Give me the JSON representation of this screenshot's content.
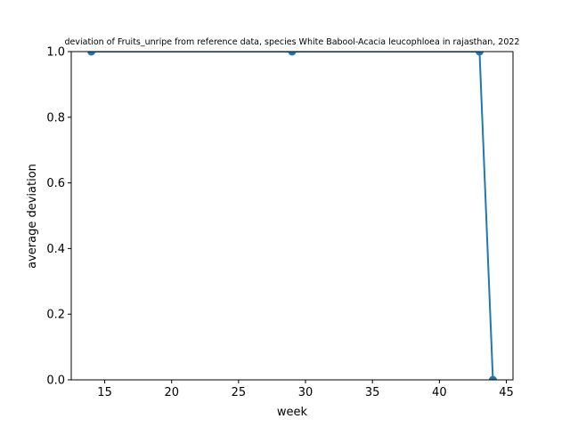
{
  "chart_data": {
    "type": "line",
    "title": "deviation of Fruits_unripe from reference data, species White Babool-Acacia leucophloea in rajasthan, 2022",
    "xlabel": "week",
    "ylabel": "average deviation",
    "xlim": [
      12.5,
      45.5
    ],
    "ylim": [
      0.0,
      1.0
    ],
    "x_ticks": [
      15,
      20,
      25,
      30,
      35,
      40,
      45
    ],
    "y_ticks": [
      0.0,
      0.2,
      0.4,
      0.6,
      0.8,
      1.0
    ],
    "x_tick_labels": [
      "15",
      "20",
      "25",
      "30",
      "35",
      "40",
      "45"
    ],
    "y_tick_labels": [
      "0.0",
      "0.2",
      "0.4",
      "0.6",
      "0.8",
      "1.0"
    ],
    "grid": false,
    "series": [
      {
        "color": "#1f77b4",
        "marker": "circle",
        "x": [
          14,
          29,
          43,
          44
        ],
        "y": [
          1.0,
          1.0,
          1.0,
          0.0
        ]
      }
    ]
  }
}
